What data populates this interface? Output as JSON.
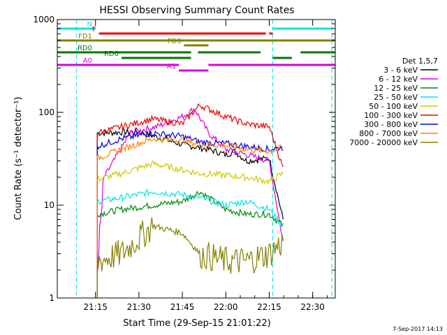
{
  "chart_data": {
    "type": "line",
    "title": "HESSI Observing Summary Count Rates",
    "xlabel": "Start Time (29-Sep-15 21:01:22)",
    "ylabel": "Count Rate (s⁻¹ detector⁻¹)",
    "y_scale": "log",
    "ylim": [
      1,
      1000
    ],
    "y_ticks": [
      "1",
      "10",
      "100",
      "1000"
    ],
    "x_ticks": [
      "21:15",
      "21:30",
      "21:45",
      "22:00",
      "22:15",
      "22:30"
    ],
    "x_range_minutes": [
      21.03,
      22.63
    ],
    "legend_title": "Det 1,5,7",
    "legend_position": "right",
    "series": [
      {
        "name": "3 - 6 keV",
        "color": "#000000",
        "x": [
          21.26,
          21.5,
          21.75,
          21.9,
          22.0,
          22.05,
          22.12,
          22.25,
          22.33
        ],
        "values": [
          60,
          62,
          45,
          40,
          35,
          38,
          30,
          32,
          7
        ]
      },
      {
        "name": "6 - 12 keV",
        "color": "#dd00dd",
        "x": [
          21.26,
          21.3,
          21.45,
          21.6,
          21.75,
          21.82,
          21.9,
          22.0,
          22.12,
          22.25,
          22.33
        ],
        "values": [
          2,
          20,
          60,
          70,
          90,
          110,
          60,
          40,
          35,
          30,
          4
        ]
      },
      {
        "name": "12 - 25 keV",
        "color": "#008800",
        "x": [
          21.26,
          21.4,
          21.58,
          21.75,
          21.85,
          22.0,
          22.12,
          22.25,
          22.33
        ],
        "values": [
          8,
          9,
          10,
          11,
          14,
          9,
          8,
          8,
          6
        ]
      },
      {
        "name": "25 - 50 keV",
        "color": "#00e5e5",
        "x": [
          21.26,
          21.4,
          21.58,
          21.75,
          21.85,
          22.0,
          22.12,
          22.25,
          22.33
        ],
        "values": [
          11,
          12,
          14,
          13,
          12,
          10,
          11,
          9,
          6
        ]
      },
      {
        "name": "50 - 100 keV",
        "color": "#cccc00",
        "x": [
          21.26,
          21.4,
          21.58,
          21.75,
          21.85,
          22.0,
          22.12,
          22.25,
          22.33
        ],
        "values": [
          19,
          22,
          28,
          24,
          22,
          21,
          20,
          18,
          22
        ]
      },
      {
        "name": "100 - 300 keV",
        "color": "#ee0000",
        "x": [
          21.26,
          21.4,
          21.58,
          21.75,
          21.85,
          22.0,
          22.12,
          22.25,
          22.33
        ],
        "values": [
          60,
          70,
          85,
          75,
          120,
          90,
          75,
          70,
          25
        ]
      },
      {
        "name": "300 - 800 keV",
        "color": "#0000ee",
        "x": [
          21.26,
          21.4,
          21.58,
          21.75,
          21.85,
          22.0,
          22.12,
          22.25,
          22.33
        ],
        "values": [
          43,
          52,
          60,
          55,
          48,
          46,
          43,
          40,
          42
        ]
      },
      {
        "name": "800 - 7000 keV",
        "color": "#ff8000",
        "x": [
          21.26,
          21.4,
          21.58,
          21.75,
          21.85,
          22.0,
          22.12,
          22.25,
          22.33
        ],
        "values": [
          32,
          40,
          52,
          50,
          45,
          44,
          40,
          38,
          42
        ]
      },
      {
        "name": "7000 - 20000 keV",
        "color": "#808000",
        "x": [
          21.26,
          21.4,
          21.58,
          21.75,
          21.85,
          22.0,
          22.12,
          22.25,
          22.33
        ],
        "values": [
          2.5,
          3,
          6,
          5,
          3,
          2.5,
          2.5,
          3,
          4
        ]
      }
    ],
    "flag_bars": [
      {
        "label": "N",
        "color": "#00e5e5",
        "segments": [
          [
            21.03,
            21.25
          ],
          [
            22.27,
            22.61
          ]
        ]
      },
      {
        "label": "F",
        "color": "#ee0000",
        "segments": [
          [
            21.27,
            22.23
          ],
          [
            22.25,
            22.27
          ]
        ]
      },
      {
        "label": "FD1",
        "color": "#808000",
        "segments": [
          [
            21.03,
            22.63
          ]
        ]
      },
      {
        "label": "FD3",
        "color": "#808000",
        "segments": [
          [
            21.76,
            21.9
          ]
        ]
      },
      {
        "label": "RD0",
        "color": "#007700",
        "segments": [
          [
            21.03,
            21.8
          ],
          [
            21.84,
            22.2
          ],
          [
            22.43,
            22.63
          ]
        ]
      },
      {
        "label": "RD6",
        "color": "#007700",
        "segments": [
          [
            21.4,
            21.8
          ],
          [
            22.27,
            22.38
          ]
        ]
      },
      {
        "label": "A0",
        "color": "#dd00dd",
        "segments": [
          [
            21.03,
            21.73
          ],
          [
            21.9,
            22.63
          ]
        ]
      },
      {
        "label": "A1",
        "color": "#dd00dd",
        "segments": [
          [
            21.73,
            21.9
          ]
        ]
      }
    ],
    "annotations": [
      "N",
      "F",
      "FD1",
      "FD3",
      "RD0",
      "RD6",
      "A0",
      "A1"
    ]
  },
  "footer_stamp": "7-Sep-2017 14:13"
}
